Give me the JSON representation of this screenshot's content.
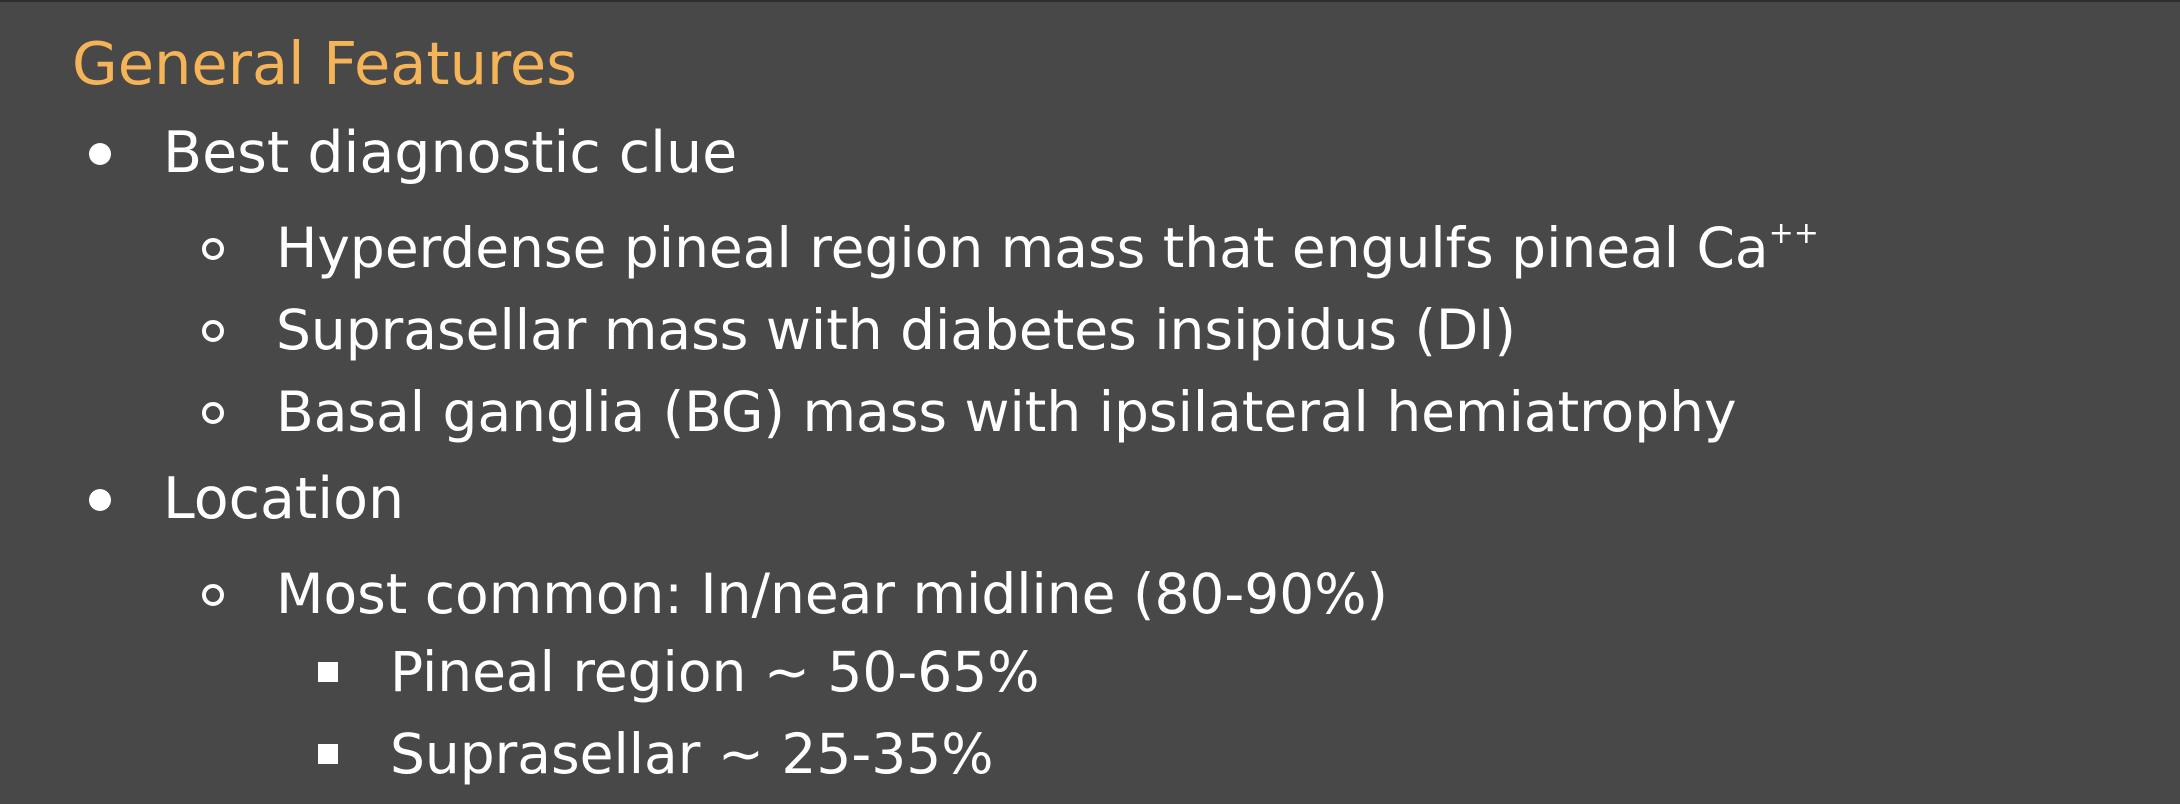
{
  "slide": {
    "title": "General Features",
    "bullets": [
      {
        "text": "Best diagnostic clue",
        "children": [
          {
            "text": "Hyperdense pineal region mass that engulfs pineal Ca",
            "sup": "++"
          },
          {
            "text": "Suprasellar mass with diabetes insipidus (DI)"
          },
          {
            "text": "Basal ganglia (BG) mass with ipsilateral hemiatrophy"
          }
        ]
      },
      {
        "text": "Location",
        "children": [
          {
            "text": "Most common: In/near midline (80-90%)",
            "children": [
              {
                "text": "Pineal region ~ 50-65%"
              },
              {
                "text": "Suprasellar ~ 25-35%"
              }
            ]
          }
        ]
      }
    ]
  },
  "colors": {
    "background": "#484848",
    "title": "#f5b457",
    "text": "#ffffff"
  }
}
